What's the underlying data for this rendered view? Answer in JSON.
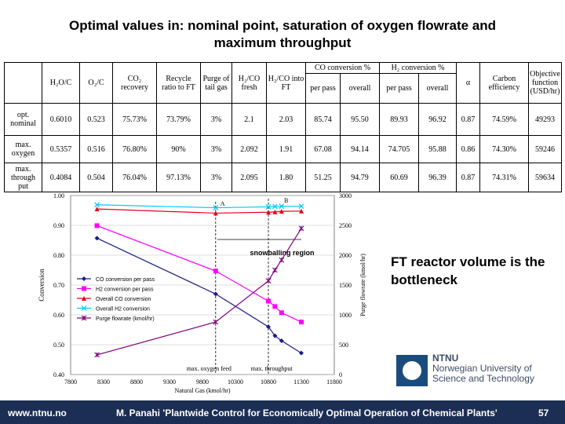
{
  "slide_title": "Optimal values in: nominal point, saturation of oxygen flowrate and maximum throughput",
  "table": {
    "header_top": {
      "co_conv": "CO conversion %",
      "h2_conv": "H₂ conversion %"
    },
    "headers": {
      "h2o_c": "H₂O/C",
      "o2_c": "O₂/C",
      "co2_recovery": "CO₂ recovery",
      "recycle_ratio": "Recycle ratio to FT",
      "purge": "Purge of tail gas",
      "h2co_fresh": "H₂/CO fresh",
      "h2co_ft": "H₂/CO into FT",
      "co_per_pass": "per pass",
      "co_overall": "overall",
      "h2_per_pass": "per pass",
      "h2_overall": "overall",
      "alpha": "α",
      "carbon_eff": "Carbon efficiency",
      "objective": "Objective function (USD/hr)"
    },
    "rows": [
      {
        "label": "opt. nominal",
        "h2o_c": "0.6010",
        "o2_c": "0.523",
        "co2_recovery": "75.73%",
        "recycle": "73.79%",
        "purge": "3%",
        "h2co_fresh": "2.1",
        "h2co_ft": "2.03",
        "co_pp": "85.74",
        "co_ov": "95.50",
        "h2_pp": "89.93",
        "h2_ov": "96.92",
        "alpha": "0.87",
        "carbon_eff": "74.59%",
        "objective": "49293"
      },
      {
        "label": "max. oxygen",
        "h2o_c": "0.5357",
        "o2_c": "0.516",
        "co2_recovery": "76.80%",
        "recycle": "90%",
        "purge": "3%",
        "h2co_fresh": "2.092",
        "h2co_ft": "1.91",
        "co_pp": "67.08",
        "co_ov": "94.14",
        "h2_pp": "74.705",
        "h2_ov": "95.88",
        "alpha": "0.86",
        "carbon_eff": "74.30%",
        "objective": "59246"
      },
      {
        "label": "max. through put",
        "h2o_c": "0.4084",
        "o2_c": "0.504",
        "co2_recovery": "76.04%",
        "recycle": "97.13%",
        "purge": "3%",
        "h2co_fresh": "2.095",
        "h2co_ft": "1.80",
        "co_pp": "51.25",
        "co_ov": "94.79",
        "h2_pp": "60.69",
        "h2_ov": "96.39",
        "alpha": "0.87",
        "carbon_eff": "74.31%",
        "objective": "59634"
      }
    ]
  },
  "chart_data": {
    "type": "line",
    "xlabel": "Natural Gas (kmol/hr)",
    "ylabel": "Conversion",
    "y2label": "Purge flowrate (kmol/hr)",
    "xlim": [
      7800,
      11800
    ],
    "ylim": [
      0.4,
      1.0
    ],
    "y2lim": [
      0,
      3000
    ],
    "xticks": [
      "7800",
      "8300",
      "8800",
      "9300",
      "9800",
      "10300",
      "10800",
      "11300",
      "11800"
    ],
    "yticks": [
      "0.40",
      "0.50",
      "0.60",
      "0.70",
      "0.80",
      "0.90",
      "1.00"
    ],
    "y2ticks": [
      "0",
      "500",
      "1000",
      "1500",
      "2000",
      "2500",
      "3000"
    ],
    "annotations": {
      "snowball": "snowballing region",
      "point_a": "A",
      "point_b": "B",
      "max_oxygen": "max. oxygen feed",
      "max_throughput": "max. throughput"
    },
    "legend_position": "center-left",
    "series": [
      {
        "name": "CO conversion per pass",
        "axis": "left",
        "color": "#1a1a8c",
        "marker": "diamond",
        "x": [
          8200,
          10000,
          10800,
          10900,
          11000,
          11300
        ],
        "y": [
          0.857,
          0.67,
          0.56,
          0.53,
          0.513,
          0.472
        ]
      },
      {
        "name": "H2 conversion per pass",
        "axis": "left",
        "color": "#ff00ff",
        "marker": "square",
        "x": [
          8200,
          10000,
          10800,
          10900,
          11000,
          11300
        ],
        "y": [
          0.899,
          0.747,
          0.646,
          0.628,
          0.607,
          0.576
        ]
      },
      {
        "name": "Overall CO conversion",
        "axis": "left",
        "color": "#e8001c",
        "marker": "triangle",
        "x": [
          8200,
          10000,
          10800,
          10900,
          11000,
          11300
        ],
        "y": [
          0.955,
          0.941,
          0.944,
          0.945,
          0.947,
          0.948
        ]
      },
      {
        "name": "Overall H2 conversion",
        "axis": "left",
        "color": "#00c8ff",
        "marker": "x",
        "x": [
          8200,
          10000,
          10800,
          10900,
          11000,
          11300
        ],
        "y": [
          0.969,
          0.959,
          0.962,
          0.963,
          0.964,
          0.964
        ]
      },
      {
        "name": "Purge flowrate (kmol/hr)",
        "axis": "right",
        "color": "#800080",
        "marker": "star",
        "x": [
          8200,
          10000,
          10800,
          10900,
          11000,
          11300
        ],
        "y": [
          330,
          880,
          1570,
          1750,
          1920,
          2450
        ]
      }
    ]
  },
  "note": "FT reactor volume is the bottleneck",
  "ntnu": {
    "abbr": "NTNU",
    "line1": "Norwegian University of",
    "line2": "Science and Technology"
  },
  "footer": {
    "url": "www.ntnu.no",
    "citation": "M. Panahi 'Plantwide Control for Economically Optimal Operation of Chemical Plants'",
    "page": "57"
  }
}
